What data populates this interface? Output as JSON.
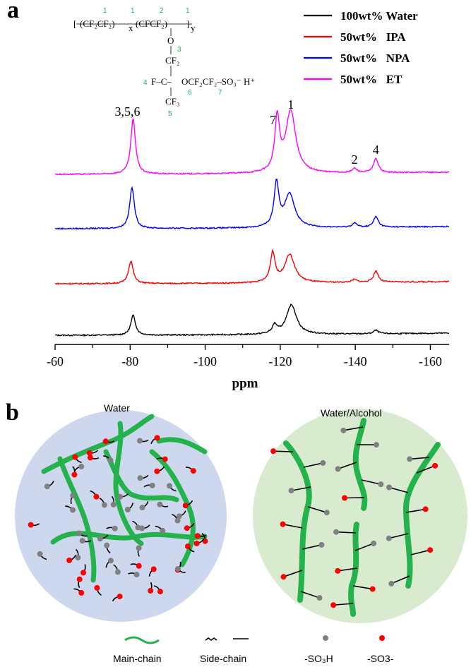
{
  "panels": {
    "a": "a",
    "b": "b"
  },
  "structure": {
    "row1": "CF₂CF₂",
    "row1_b": "CFCF₂",
    "sub_x": "x",
    "sub_y": "y",
    "o1": "O",
    "cf2": "CF₂",
    "f_c": "F–C–",
    "tail": "OCF₂CF₂–SO₃⁻ H⁺",
    "cf3": "CF₃",
    "numbers": [
      "1",
      "1",
      "2",
      "1",
      "3",
      "4",
      "5",
      "6",
      "7"
    ]
  },
  "chart_data": {
    "type": "line",
    "xlabel": "ppm",
    "xlim": [
      -60,
      -165
    ],
    "x_ticks": [
      -60,
      -80,
      -100,
      -120,
      -140,
      -160
    ],
    "x_tick_labels": [
      "-60",
      "-80",
      "-100",
      "-120",
      "-140",
      "-160"
    ],
    "series": [
      {
        "name": "100wt% Water",
        "color": "#000000",
        "peaks": [
          {
            "x": -80.8,
            "h": 28
          },
          {
            "x": -118.5,
            "h": 12
          },
          {
            "x": -123.0,
            "h": 42
          },
          {
            "x": -145.5,
            "h": 5
          }
        ]
      },
      {
        "name": "50wt%   IPA",
        "color": "#ff0000",
        "peaks": [
          {
            "x": -80.2,
            "h": 32
          },
          {
            "x": -118.0,
            "h": 42
          },
          {
            "x": -122.5,
            "h": 40
          },
          {
            "x": -139.8,
            "h": 4
          },
          {
            "x": -145.5,
            "h": 16
          }
        ]
      },
      {
        "name": "50wt%   NPA",
        "color": "#0000ff",
        "peaks": [
          {
            "x": -80.5,
            "h": 58
          },
          {
            "x": -119.0,
            "h": 62
          },
          {
            "x": -122.5,
            "h": 48
          },
          {
            "x": -139.8,
            "h": 6
          },
          {
            "x": -145.5,
            "h": 15
          }
        ]
      },
      {
        "name": "50wt%   ET",
        "color": "#ff00ff",
        "peaks": [
          {
            "x": -80.8,
            "h": 78
          },
          {
            "x": -119.2,
            "h": 75
          },
          {
            "x": -122.8,
            "h": 88
          },
          {
            "x": -139.8,
            "h": 6
          },
          {
            "x": -145.5,
            "h": 20
          }
        ]
      }
    ],
    "legend": [
      "100wt% Water",
      "50wt%   IPA",
      "50wt%   NPA",
      "50wt%   ET"
    ],
    "peak_annotations": [
      {
        "label": "3,5,6",
        "x": -80.8
      },
      {
        "label": "7",
        "x": -119.2
      },
      {
        "label": "1",
        "x": -122.8
      },
      {
        "label": "2",
        "x": -139.8
      },
      {
        "label": "4",
        "x": -145.5
      }
    ]
  },
  "schematic": {
    "left_title": "Water",
    "right_title": "Water/Alcohol",
    "key_main_chain": "Main-chain",
    "key_side_chain": "Side-chain",
    "key_so3h": "-SO₃H",
    "key_so3": "-SO3-",
    "color_main": "#23b24b",
    "color_so3h": "#808080",
    "color_so3": "#ff0000",
    "left_bg": "#cdd8ee",
    "right_bg": "#d9ebcf"
  }
}
